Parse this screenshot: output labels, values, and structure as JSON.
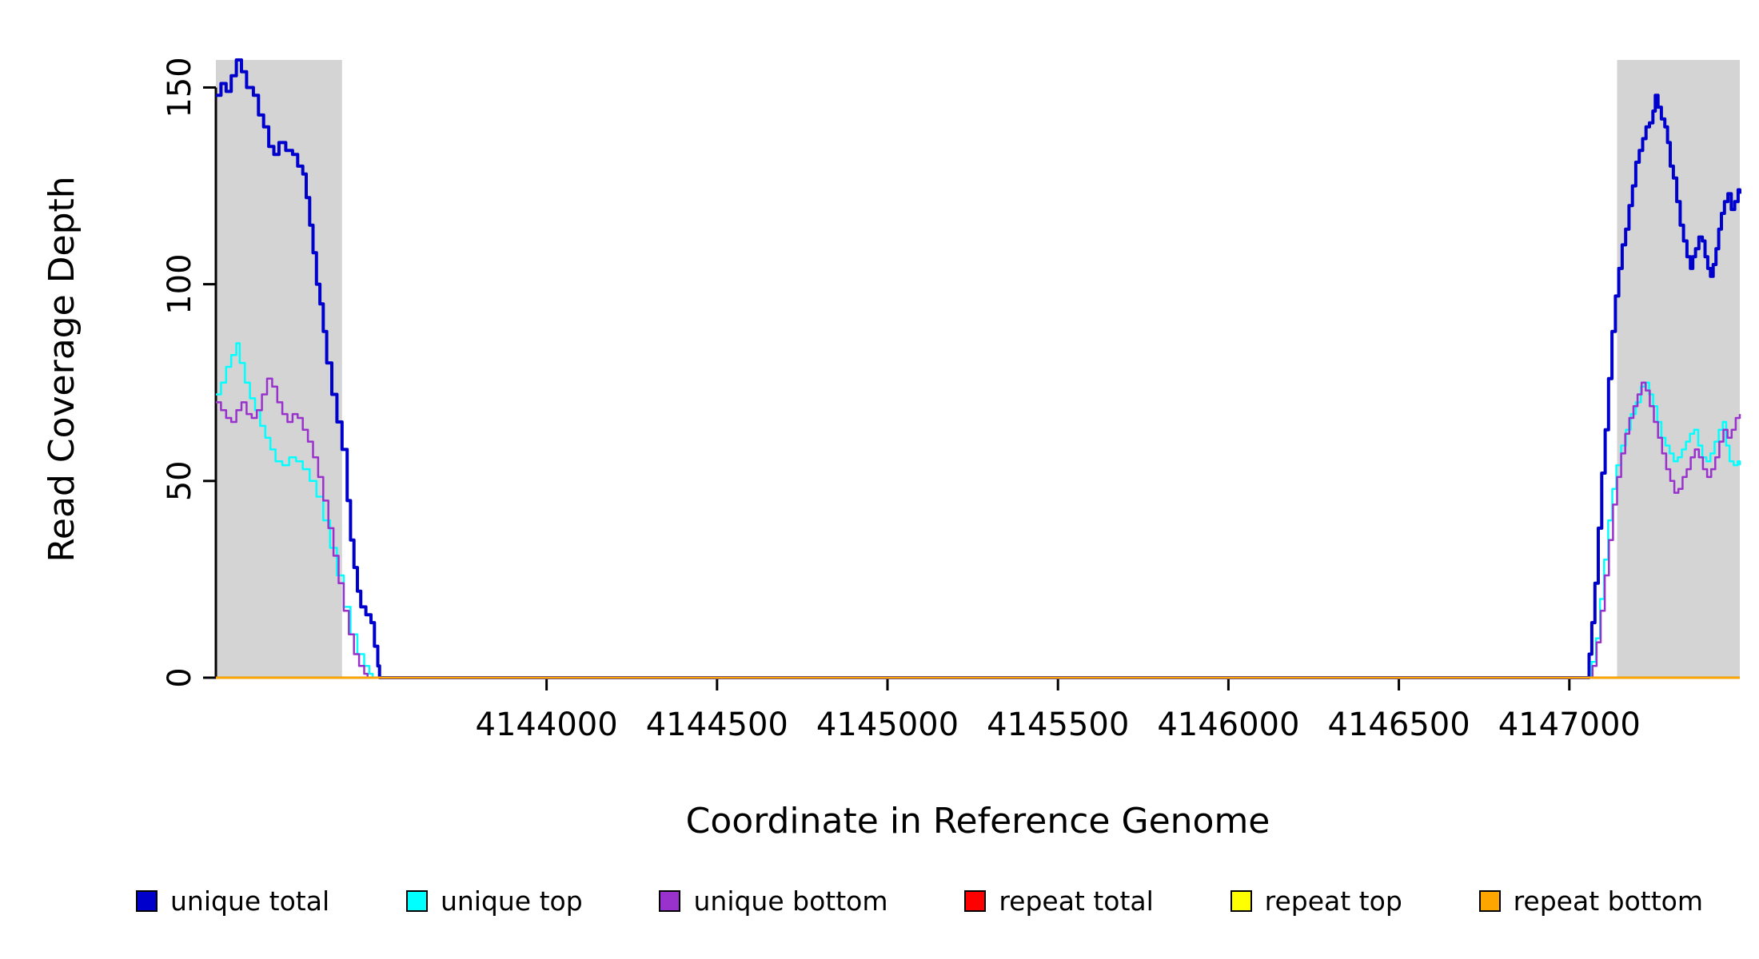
{
  "chart_data": {
    "type": "line",
    "title": "",
    "xlabel": "Coordinate in Reference Genome",
    "ylabel": "Read Coverage Depth",
    "xlim": [
      4143030,
      4147500
    ],
    "ylim": [
      0,
      157
    ],
    "x_ticks": [
      4144000,
      4144500,
      4145000,
      4145500,
      4146000,
      4146500,
      4147000
    ],
    "y_ticks": [
      0,
      50,
      100,
      150
    ],
    "grid": false,
    "legend_position": "bottom",
    "shade_color": "#d4d4d4",
    "shaded_regions": [
      [
        4143030,
        4143400
      ],
      [
        4147140,
        4147500
      ]
    ],
    "series": [
      {
        "id": "unique-total",
        "name": "unique total",
        "color": "#0000cd",
        "width": 4,
        "points": [
          [
            4143030,
            148
          ],
          [
            4143045,
            151
          ],
          [
            4143060,
            149
          ],
          [
            4143075,
            153
          ],
          [
            4143090,
            157
          ],
          [
            4143105,
            154
          ],
          [
            4143120,
            150
          ],
          [
            4143140,
            148
          ],
          [
            4143155,
            143
          ],
          [
            4143170,
            140
          ],
          [
            4143185,
            135
          ],
          [
            4143200,
            133
          ],
          [
            4143215,
            136
          ],
          [
            4143235,
            134
          ],
          [
            4143255,
            133
          ],
          [
            4143270,
            130
          ],
          [
            4143285,
            128
          ],
          [
            4143295,
            122
          ],
          [
            4143305,
            115
          ],
          [
            4143315,
            108
          ],
          [
            4143325,
            100
          ],
          [
            4143335,
            95
          ],
          [
            4143345,
            88
          ],
          [
            4143355,
            80
          ],
          [
            4143370,
            72
          ],
          [
            4143385,
            65
          ],
          [
            4143400,
            58
          ],
          [
            4143415,
            45
          ],
          [
            4143425,
            35
          ],
          [
            4143435,
            28
          ],
          [
            4143445,
            22
          ],
          [
            4143455,
            18
          ],
          [
            4143470,
            16
          ],
          [
            4143485,
            14
          ],
          [
            4143495,
            8
          ],
          [
            4143505,
            3
          ],
          [
            4143510,
            0
          ],
          [
            4147050,
            0
          ],
          [
            4147058,
            6
          ],
          [
            4147066,
            14
          ],
          [
            4147075,
            24
          ],
          [
            4147085,
            38
          ],
          [
            4147095,
            52
          ],
          [
            4147105,
            63
          ],
          [
            4147115,
            76
          ],
          [
            4147125,
            88
          ],
          [
            4147135,
            97
          ],
          [
            4147145,
            104
          ],
          [
            4147155,
            110
          ],
          [
            4147165,
            114
          ],
          [
            4147175,
            120
          ],
          [
            4147185,
            125
          ],
          [
            4147195,
            131
          ],
          [
            4147205,
            134
          ],
          [
            4147215,
            137
          ],
          [
            4147225,
            140
          ],
          [
            4147235,
            141
          ],
          [
            4147245,
            144
          ],
          [
            4147252,
            148
          ],
          [
            4147260,
            145
          ],
          [
            4147270,
            142
          ],
          [
            4147280,
            140
          ],
          [
            4147288,
            136
          ],
          [
            4147296,
            130
          ],
          [
            4147305,
            127
          ],
          [
            4147315,
            121
          ],
          [
            4147325,
            115
          ],
          [
            4147335,
            111
          ],
          [
            4147345,
            107
          ],
          [
            4147355,
            104
          ],
          [
            4147362,
            107
          ],
          [
            4147370,
            109
          ],
          [
            4147380,
            112
          ],
          [
            4147390,
            111
          ],
          [
            4147398,
            107
          ],
          [
            4147406,
            104
          ],
          [
            4147414,
            102
          ],
          [
            4147422,
            105
          ],
          [
            4147430,
            109
          ],
          [
            4147438,
            114
          ],
          [
            4147446,
            118
          ],
          [
            4147455,
            121
          ],
          [
            4147465,
            123
          ],
          [
            4147475,
            119
          ],
          [
            4147485,
            121
          ],
          [
            4147495,
            124
          ],
          [
            4147500,
            123
          ]
        ]
      },
      {
        "id": "unique-top",
        "name": "unique top",
        "color": "#00ffff",
        "width": 2.5,
        "points": [
          [
            4143030,
            72
          ],
          [
            4143045,
            75
          ],
          [
            4143060,
            79
          ],
          [
            4143075,
            82
          ],
          [
            4143090,
            85
          ],
          [
            4143100,
            80
          ],
          [
            4143115,
            75
          ],
          [
            4143130,
            71
          ],
          [
            4143145,
            68
          ],
          [
            4143160,
            64
          ],
          [
            4143175,
            61
          ],
          [
            4143190,
            58
          ],
          [
            4143205,
            55
          ],
          [
            4143225,
            54
          ],
          [
            4143245,
            56
          ],
          [
            4143265,
            55
          ],
          [
            4143285,
            53
          ],
          [
            4143305,
            50
          ],
          [
            4143325,
            46
          ],
          [
            4143345,
            40
          ],
          [
            4143365,
            33
          ],
          [
            4143385,
            26
          ],
          [
            4143405,
            18
          ],
          [
            4143425,
            11
          ],
          [
            4143445,
            6
          ],
          [
            4143465,
            3
          ],
          [
            4143480,
            1
          ],
          [
            4143490,
            0
          ],
          [
            4147055,
            0
          ],
          [
            4147065,
            4
          ],
          [
            4147078,
            10
          ],
          [
            4147090,
            20
          ],
          [
            4147102,
            30
          ],
          [
            4147114,
            40
          ],
          [
            4147126,
            48
          ],
          [
            4147138,
            54
          ],
          [
            4147152,
            59
          ],
          [
            4147166,
            63
          ],
          [
            4147180,
            67
          ],
          [
            4147195,
            70
          ],
          [
            4147210,
            74
          ],
          [
            4147222,
            75
          ],
          [
            4147234,
            72
          ],
          [
            4147246,
            69
          ],
          [
            4147258,
            65
          ],
          [
            4147270,
            61
          ],
          [
            4147282,
            59
          ],
          [
            4147294,
            57
          ],
          [
            4147306,
            55
          ],
          [
            4147318,
            56
          ],
          [
            4147330,
            58
          ],
          [
            4147342,
            60
          ],
          [
            4147354,
            62
          ],
          [
            4147366,
            63
          ],
          [
            4147378,
            59
          ],
          [
            4147390,
            56
          ],
          [
            4147402,
            55
          ],
          [
            4147414,
            57
          ],
          [
            4147426,
            60
          ],
          [
            4147438,
            63
          ],
          [
            4147450,
            65
          ],
          [
            4147460,
            59
          ],
          [
            4147470,
            55
          ],
          [
            4147482,
            54
          ],
          [
            4147494,
            55
          ],
          [
            4147500,
            54
          ]
        ]
      },
      {
        "id": "unique-bottom",
        "name": "unique bottom",
        "color": "#9932cc",
        "width": 2.5,
        "points": [
          [
            4143030,
            70
          ],
          [
            4143045,
            68
          ],
          [
            4143060,
            66
          ],
          [
            4143075,
            65
          ],
          [
            4143090,
            68
          ],
          [
            4143105,
            70
          ],
          [
            4143120,
            67
          ],
          [
            4143135,
            66
          ],
          [
            4143150,
            68
          ],
          [
            4143165,
            72
          ],
          [
            4143180,
            76
          ],
          [
            4143195,
            74
          ],
          [
            4143210,
            70
          ],
          [
            4143225,
            67
          ],
          [
            4143240,
            65
          ],
          [
            4143255,
            67
          ],
          [
            4143270,
            66
          ],
          [
            4143285,
            63
          ],
          [
            4143300,
            60
          ],
          [
            4143315,
            56
          ],
          [
            4143330,
            51
          ],
          [
            4143345,
            45
          ],
          [
            4143360,
            38
          ],
          [
            4143375,
            31
          ],
          [
            4143390,
            24
          ],
          [
            4143405,
            17
          ],
          [
            4143420,
            11
          ],
          [
            4143435,
            6
          ],
          [
            4143450,
            3
          ],
          [
            4143465,
            1
          ],
          [
            4143475,
            0
          ],
          [
            4147058,
            0
          ],
          [
            4147068,
            3
          ],
          [
            4147080,
            9
          ],
          [
            4147092,
            17
          ],
          [
            4147104,
            26
          ],
          [
            4147116,
            35
          ],
          [
            4147128,
            44
          ],
          [
            4147140,
            51
          ],
          [
            4147152,
            57
          ],
          [
            4147164,
            62
          ],
          [
            4147176,
            66
          ],
          [
            4147188,
            69
          ],
          [
            4147200,
            72
          ],
          [
            4147212,
            75
          ],
          [
            4147224,
            73
          ],
          [
            4147236,
            69
          ],
          [
            4147248,
            65
          ],
          [
            4147260,
            61
          ],
          [
            4147272,
            57
          ],
          [
            4147284,
            53
          ],
          [
            4147296,
            50
          ],
          [
            4147308,
            47
          ],
          [
            4147320,
            48
          ],
          [
            4147332,
            51
          ],
          [
            4147344,
            53
          ],
          [
            4147356,
            56
          ],
          [
            4147368,
            58
          ],
          [
            4147380,
            56
          ],
          [
            4147392,
            53
          ],
          [
            4147404,
            51
          ],
          [
            4147416,
            53
          ],
          [
            4147428,
            56
          ],
          [
            4147440,
            60
          ],
          [
            4147452,
            63
          ],
          [
            4147464,
            61
          ],
          [
            4147476,
            63
          ],
          [
            4147488,
            66
          ],
          [
            4147500,
            67
          ]
        ]
      },
      {
        "id": "repeat-total",
        "name": "repeat total",
        "color": "#ff0000",
        "width": 2.5,
        "points": [
          [
            4143030,
            0
          ],
          [
            4147500,
            0
          ]
        ]
      },
      {
        "id": "repeat-top",
        "name": "repeat top",
        "color": "#ffff00",
        "width": 2.5,
        "points": [
          [
            4143030,
            0
          ],
          [
            4147500,
            0
          ]
        ]
      },
      {
        "id": "repeat-bottom",
        "name": "repeat bottom",
        "color": "#ffa500",
        "width": 2.5,
        "points": [
          [
            4143030,
            0
          ],
          [
            4147500,
            0
          ]
        ]
      }
    ],
    "legend": [
      {
        "label": "unique total",
        "color": "#0000cd"
      },
      {
        "label": "unique top",
        "color": "#00ffff"
      },
      {
        "label": "unique bottom",
        "color": "#9932cc"
      },
      {
        "label": "repeat total",
        "color": "#ff0000"
      },
      {
        "label": "repeat top",
        "color": "#ffff00"
      },
      {
        "label": "repeat bottom",
        "color": "#ffa500"
      }
    ]
  }
}
